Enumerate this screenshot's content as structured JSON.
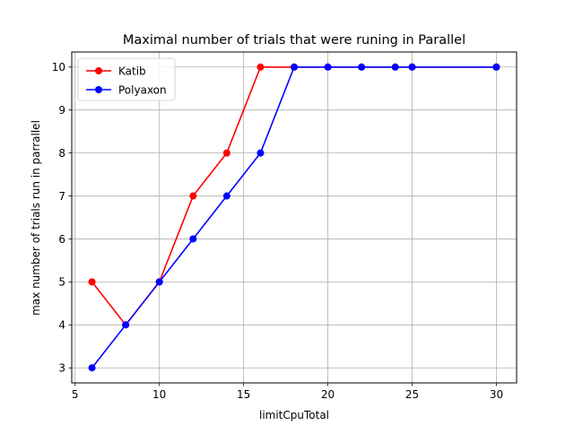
{
  "chart_data": {
    "type": "line",
    "title": "Maximal number of trials that were  runing in Parallel",
    "xlabel": "limitCpuTotal",
    "ylabel": "max number of trials run in parrallel",
    "xlim": [
      4.8,
      31.2
    ],
    "ylim": [
      2.65,
      10.35
    ],
    "xticks": [
      5,
      10,
      15,
      20,
      25,
      30
    ],
    "yticks": [
      3,
      4,
      5,
      6,
      7,
      8,
      9,
      10
    ],
    "grid": true,
    "legend": "top-left",
    "series": [
      {
        "name": "Katib",
        "color": "#ff0000",
        "x": [
          6,
          8,
          10,
          12,
          14,
          16,
          18,
          20,
          22,
          24,
          25,
          30
        ],
        "y": [
          5,
          4,
          5,
          7,
          8,
          10,
          10,
          10,
          10,
          10,
          10,
          10
        ]
      },
      {
        "name": "Polyaxon",
        "color": "#0000ff",
        "x": [
          6,
          8,
          10,
          12,
          14,
          16,
          18,
          20,
          22,
          24,
          25,
          30
        ],
        "y": [
          3,
          4,
          5,
          6,
          7,
          8,
          10,
          10,
          10,
          10,
          10,
          10
        ]
      }
    ]
  }
}
